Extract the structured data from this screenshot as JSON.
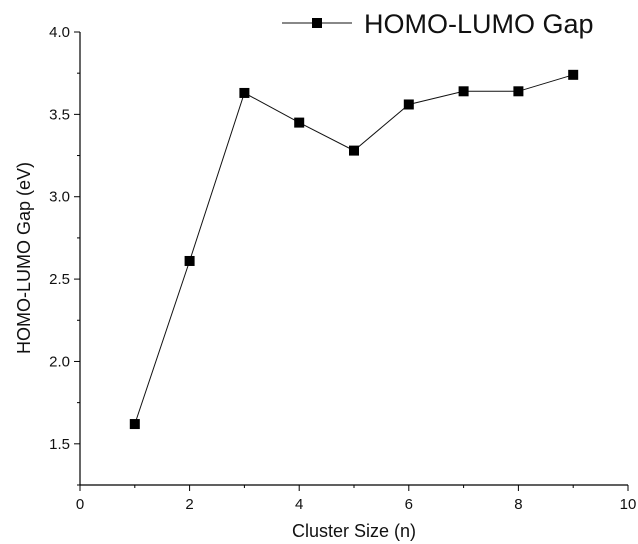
{
  "chart_data": {
    "type": "line",
    "xlabel": "Cluster Size (n)",
    "ylabel": "HOMO-LUMO Gap (eV)",
    "xlim": [
      0,
      10
    ],
    "ylim": [
      1.25,
      4.0
    ],
    "x_ticks": [
      0,
      2,
      4,
      6,
      8,
      10
    ],
    "x_tick_labels": [
      "0",
      "2",
      "4",
      "6",
      "8",
      "10"
    ],
    "y_ticks": [
      1.5,
      2.0,
      2.5,
      3.0,
      3.5,
      4.0
    ],
    "y_tick_labels": [
      "1.5",
      "2.0",
      "2.5",
      "3.0",
      "3.5",
      "4.0"
    ],
    "legend_position": "top-right",
    "grid": false,
    "series": [
      {
        "name": "HOMO-LUMO Gap",
        "marker": "square",
        "color": "#000000",
        "x": [
          1,
          2,
          3,
          4,
          5,
          6,
          7,
          8,
          9
        ],
        "y": [
          1.62,
          2.61,
          3.63,
          3.45,
          3.28,
          3.56,
          3.64,
          3.64,
          3.74
        ]
      }
    ]
  }
}
